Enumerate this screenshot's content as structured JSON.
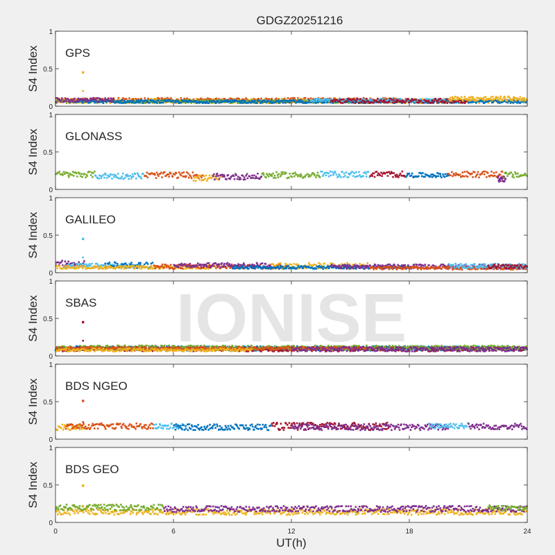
{
  "figure": {
    "title": "GDGZ20251216",
    "xlabel": "UT(h)",
    "ylabel": "S4 Index",
    "watermark": "IONISE",
    "background": "#f0f0f0",
    "axes_background": "#ffffff",
    "xlim": [
      0,
      24
    ],
    "xticks": [
      0,
      6,
      12,
      18,
      24
    ],
    "ylim": [
      0,
      1
    ],
    "yticks": [
      0,
      0.5,
      1
    ],
    "ytick_labels": [
      "0",
      "0.5",
      "1"
    ]
  },
  "palette": {
    "blue": "#0072bd",
    "orange": "#d95319",
    "yellow": "#edb120",
    "purple": "#7e2f8e",
    "green": "#77ac30",
    "cyan": "#4dbeee",
    "maroon": "#a2142f"
  },
  "chart_data": [
    {
      "type": "scatter",
      "panel_label": "GPS",
      "spike": {
        "x": 1.4,
        "y": 0.45,
        "color": "yellow"
      },
      "segments": [
        {
          "color": "yellow",
          "x": [
            0,
            24
          ],
          "mean": 0.07,
          "spread": 0.03
        },
        {
          "color": "orange",
          "x": [
            0,
            18
          ],
          "mean": 0.08,
          "spread": 0.03
        },
        {
          "color": "green",
          "x": [
            0,
            16
          ],
          "mean": 0.06,
          "spread": 0.02
        },
        {
          "color": "blue",
          "x": [
            1,
            24
          ],
          "mean": 0.06,
          "spread": 0.02
        },
        {
          "color": "purple",
          "x": [
            0,
            3
          ],
          "mean": 0.08,
          "spread": 0.03
        },
        {
          "color": "cyan",
          "x": [
            13,
            20
          ],
          "mean": 0.08,
          "spread": 0.02
        },
        {
          "color": "maroon",
          "x": [
            14,
            21
          ],
          "mean": 0.07,
          "spread": 0.03
        },
        {
          "color": "yellow",
          "x": [
            20,
            24
          ],
          "mean": 0.1,
          "spread": 0.03
        }
      ]
    },
    {
      "type": "scatter",
      "panel_label": "GLONASS",
      "spike": null,
      "segments": [
        {
          "color": "green",
          "x": [
            0,
            2
          ],
          "mean": 0.2,
          "spread": 0.04
        },
        {
          "color": "cyan",
          "x": [
            2,
            4.5
          ],
          "mean": 0.18,
          "spread": 0.04
        },
        {
          "color": "orange",
          "x": [
            4.5,
            7.5
          ],
          "mean": 0.19,
          "spread": 0.04
        },
        {
          "color": "yellow",
          "x": [
            7,
            8.5
          ],
          "mean": 0.15,
          "spread": 0.04
        },
        {
          "color": "purple",
          "x": [
            8,
            10.5
          ],
          "mean": 0.17,
          "spread": 0.04
        },
        {
          "color": "green",
          "x": [
            10.5,
            13.5
          ],
          "mean": 0.19,
          "spread": 0.04
        },
        {
          "color": "cyan",
          "x": [
            13.5,
            16
          ],
          "mean": 0.2,
          "spread": 0.04
        },
        {
          "color": "maroon",
          "x": [
            16,
            17.8
          ],
          "mean": 0.2,
          "spread": 0.04
        },
        {
          "color": "blue",
          "x": [
            17.8,
            20
          ],
          "mean": 0.19,
          "spread": 0.03
        },
        {
          "color": "orange",
          "x": [
            20,
            22.8
          ],
          "mean": 0.2,
          "spread": 0.04
        },
        {
          "color": "purple",
          "x": [
            22.5,
            22.9
          ],
          "mean": 0.14,
          "spread": 0.04
        },
        {
          "color": "green",
          "x": [
            22.8,
            24
          ],
          "mean": 0.19,
          "spread": 0.04
        }
      ]
    },
    {
      "type": "scatter",
      "panel_label": "GALILEO",
      "spike": {
        "x": 1.4,
        "y": 0.45,
        "color": "cyan"
      },
      "segments": [
        {
          "color": "purple",
          "x": [
            0,
            1.5
          ],
          "mean": 0.12,
          "spread": 0.04
        },
        {
          "color": "cyan",
          "x": [
            0.5,
            4
          ],
          "mean": 0.09,
          "spread": 0.03
        },
        {
          "color": "blue",
          "x": [
            2.5,
            5
          ],
          "mean": 0.1,
          "spread": 0.04
        },
        {
          "color": "yellow",
          "x": [
            0,
            8
          ],
          "mean": 0.07,
          "spread": 0.02
        },
        {
          "color": "orange",
          "x": [
            5,
            12
          ],
          "mean": 0.08,
          "spread": 0.03
        },
        {
          "color": "purple",
          "x": [
            6,
            11
          ],
          "mean": 0.1,
          "spread": 0.03
        },
        {
          "color": "yellow",
          "x": [
            11,
            16
          ],
          "mean": 0.09,
          "spread": 0.04
        },
        {
          "color": "blue",
          "x": [
            9,
            18
          ],
          "mean": 0.07,
          "spread": 0.02
        },
        {
          "color": "purple",
          "x": [
            14,
            24
          ],
          "mean": 0.08,
          "spread": 0.03
        },
        {
          "color": "orange",
          "x": [
            16,
            24
          ],
          "mean": 0.06,
          "spread": 0.02
        },
        {
          "color": "cyan",
          "x": [
            20,
            24
          ],
          "mean": 0.09,
          "spread": 0.03
        },
        {
          "color": "maroon",
          "x": [
            22,
            24
          ],
          "mean": 0.08,
          "spread": 0.03
        }
      ]
    },
    {
      "type": "scatter",
      "panel_label": "SBAS",
      "spike": {
        "x": 1.4,
        "y": 0.45,
        "color": "maroon"
      },
      "segments": [
        {
          "color": "blue",
          "x": [
            0,
            24
          ],
          "mean": 0.1,
          "spread": 0.03
        },
        {
          "color": "maroon",
          "x": [
            0,
            24
          ],
          "mean": 0.09,
          "spread": 0.03
        },
        {
          "color": "green",
          "x": [
            0,
            24
          ],
          "mean": 0.11,
          "spread": 0.03
        },
        {
          "color": "orange",
          "x": [
            0,
            16
          ],
          "mean": 0.1,
          "spread": 0.02
        },
        {
          "color": "purple",
          "x": [
            12,
            24
          ],
          "mean": 0.09,
          "spread": 0.03
        },
        {
          "color": "yellow",
          "x": [
            0,
            10
          ],
          "mean": 0.08,
          "spread": 0.02
        }
      ]
    },
    {
      "type": "scatter",
      "panel_label": "BDS NGEO",
      "spike": {
        "x": 1.4,
        "y": 0.51,
        "color": "orange"
      },
      "segments": [
        {
          "color": "yellow",
          "x": [
            0,
            1.5
          ],
          "mean": 0.16,
          "spread": 0.04
        },
        {
          "color": "orange",
          "x": [
            0.5,
            5
          ],
          "mean": 0.17,
          "spread": 0.04
        },
        {
          "color": "cyan",
          "x": [
            5,
            6.5
          ],
          "mean": 0.17,
          "spread": 0.04
        },
        {
          "color": "blue",
          "x": [
            6,
            11
          ],
          "mean": 0.16,
          "spread": 0.04
        },
        {
          "color": "maroon",
          "x": [
            11,
            17
          ],
          "mean": 0.17,
          "spread": 0.05
        },
        {
          "color": "purple",
          "x": [
            12,
            20
          ],
          "mean": 0.16,
          "spread": 0.04
        },
        {
          "color": "cyan",
          "x": [
            19,
            21
          ],
          "mean": 0.18,
          "spread": 0.04
        },
        {
          "color": "purple",
          "x": [
            21,
            24
          ],
          "mean": 0.17,
          "spread": 0.04
        }
      ]
    },
    {
      "type": "scatter",
      "panel_label": "BDS GEO",
      "spike": {
        "x": 1.4,
        "y": 0.49,
        "color": "yellow"
      },
      "segments": [
        {
          "color": "yellow",
          "x": [
            0,
            24
          ],
          "mean": 0.14,
          "spread": 0.04
        },
        {
          "color": "green",
          "x": [
            0,
            5.5
          ],
          "mean": 0.2,
          "spread": 0.04
        },
        {
          "color": "purple",
          "x": [
            5.5,
            24
          ],
          "mean": 0.18,
          "spread": 0.04
        },
        {
          "color": "green",
          "x": [
            22,
            24
          ],
          "mean": 0.19,
          "spread": 0.04
        }
      ]
    }
  ]
}
